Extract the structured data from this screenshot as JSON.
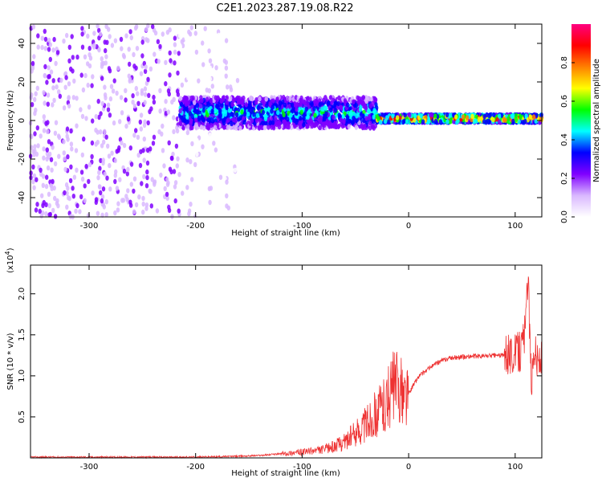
{
  "title": "C2E1.2023.287.19.08.R22",
  "chart_data": [
    {
      "type": "heatmap",
      "xlabel": "Height of straight line (km)",
      "ylabel": "Frequency (Hz)",
      "xlim": [
        -355,
        125
      ],
      "ylim": [
        -50,
        50
      ],
      "xticks": [
        -300,
        -200,
        -100,
        0,
        100
      ],
      "yticks": [
        -40,
        -20,
        0,
        20,
        40
      ],
      "colorbar": {
        "label": "Normalized spectral amplitude",
        "range": [
          0,
          1
        ],
        "ticks": [
          "0.0",
          "0.2",
          "0.4",
          "0.6",
          "0.8"
        ],
        "colors": [
          "#ffffff",
          "#d9b8ff",
          "#8000ff",
          "#0000ff",
          "#00ffff",
          "#00ff00",
          "#ffff00",
          "#ff8000",
          "#ff0000",
          "#ff0080"
        ]
      },
      "regions": [
        {
          "x": [
            -355,
            -215
          ],
          "freq_spread": 50,
          "level": 0.15
        },
        {
          "x": [
            -215,
            -160
          ],
          "freq_spread": 50,
          "level": 0.05
        },
        {
          "x": [
            -215,
            -30
          ],
          "freq_center": 4,
          "freq_spread": 8,
          "level": 0.45
        },
        {
          "x": [
            -30,
            125
          ],
          "freq_center": 1,
          "freq_spread": 2,
          "level": 0.8
        }
      ]
    },
    {
      "type": "line",
      "xlabel": "Height of straight line (km)",
      "ylabel": "SNR (10 * v/v)",
      "yscale_label": "(x10",
      "yscale_exp": "4",
      "yscale_close": ")",
      "xlim": [
        -355,
        125
      ],
      "ylim": [
        0,
        2.35
      ],
      "xticks": [
        -300,
        -200,
        -100,
        0,
        100
      ],
      "yticks": [
        0.5,
        1.0,
        1.5,
        2.0
      ],
      "ytick_labels": [
        "0.5",
        "1.0",
        "1.5",
        "2.0"
      ],
      "color": "#ee3333",
      "series": [
        {
          "x": [
            -355,
            -300,
            -250,
            -200,
            -180,
            -160,
            -140,
            -120,
            -100,
            -80,
            -70,
            -60,
            -50,
            -40,
            -30,
            -20,
            -15,
            -10,
            -5,
            0,
            5,
            10,
            20,
            30,
            40,
            50,
            60,
            70,
            80,
            90,
            95,
            100,
            105,
            110,
            112,
            115,
            118,
            120,
            125
          ],
          "y": [
            0.01,
            0.01,
            0.01,
            0.01,
            0.015,
            0.02,
            0.03,
            0.05,
            0.07,
            0.1,
            0.14,
            0.2,
            0.3,
            0.42,
            0.55,
            0.7,
            0.85,
            0.88,
            0.75,
            0.78,
            0.9,
            1.0,
            1.1,
            1.18,
            1.22,
            1.23,
            1.24,
            1.24,
            1.25,
            1.25,
            1.26,
            1.28,
            1.3,
            1.6,
            2.3,
            0.9,
            1.4,
            1.2,
            1.19
          ]
        }
      ]
    }
  ]
}
